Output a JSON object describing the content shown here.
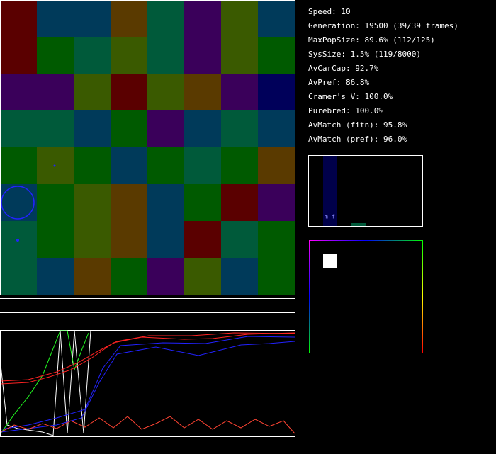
{
  "stats": [
    "Speed: 10",
    "Generation: 19500 (39/39 frames)",
    "MaxPopSize: 89.6% (112/125)",
    "SysSize: 1.5% (119/8000)",
    "AvCarCap: 92.7%",
    "AvPref: 86.8%",
    "Cramer's V: 100.0%",
    "Purebred: 100.0%",
    "AvMatch (fitn): 95.8%",
    "AvMatch (pref): 96.0%"
  ],
  "histogram": {
    "labels": [
      "m",
      "f"
    ]
  }
}
